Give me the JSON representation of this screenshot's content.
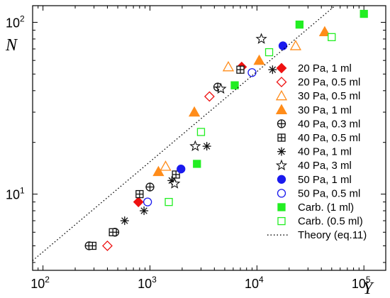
{
  "chart_data": {
    "type": "scatter",
    "xlabel": "Y",
    "ylabel": "N",
    "x_scale": "log",
    "y_scale": "log",
    "xlim": [
      80,
      160000
    ],
    "ylim": [
      3.6,
      125
    ],
    "x_ticks": [
      {
        "value": 100,
        "base": "10",
        "exp": "2"
      },
      {
        "value": 1000,
        "base": "10",
        "exp": "3"
      },
      {
        "value": 10000,
        "base": "10",
        "exp": "4"
      },
      {
        "value": 100000,
        "base": "10",
        "exp": "5"
      }
    ],
    "y_ticks": [
      {
        "value": 10,
        "base": "10",
        "exp": "1"
      },
      {
        "value": 100,
        "base": "10",
        "exp": "2"
      }
    ],
    "legend_position": "right",
    "series": [
      {
        "name": "20 Pa, 1 ml",
        "marker": "diamond-filled",
        "color": "#ee1111",
        "points": [
          [
            780,
            9
          ],
          [
            7200,
            55
          ]
        ]
      },
      {
        "name": "20 Pa, 0.5 ml",
        "marker": "diamond-open",
        "color": "#ee1111",
        "points": [
          [
            400,
            5
          ],
          [
            3600,
            37
          ]
        ]
      },
      {
        "name": "30 Pa, 0.5 ml",
        "marker": "triangle-open",
        "color": "#ff8c1a",
        "points": [
          [
            1400,
            14.5
          ],
          [
            5400,
            55
          ],
          [
            23000,
            73
          ]
        ]
      },
      {
        "name": "30 Pa, 1 ml",
        "marker": "triangle-filled",
        "color": "#ff8c1a",
        "points": [
          [
            1200,
            13.5
          ],
          [
            2600,
            30
          ],
          [
            10500,
            60
          ],
          [
            43000,
            88
          ]
        ]
      },
      {
        "name": "40 Pa, 0.3 ml",
        "marker": "circle-plus",
        "color": "#111111",
        "points": [
          [
            270,
            5
          ],
          [
            470,
            6
          ],
          [
            1000,
            11
          ],
          [
            4300,
            42
          ]
        ]
      },
      {
        "name": "40 Pa, 0.5 ml",
        "marker": "square-plus",
        "color": "#111111",
        "points": [
          [
            290,
            5
          ],
          [
            450,
            6
          ],
          [
            800,
            10
          ],
          [
            1750,
            13
          ],
          [
            7000,
            53
          ]
        ]
      },
      {
        "name": "40 Pa, 1 ml",
        "marker": "asterisk",
        "color": "#111111",
        "points": [
          [
            580,
            7
          ],
          [
            880,
            8
          ],
          [
            1600,
            12
          ],
          [
            3400,
            19
          ],
          [
            14000,
            53
          ]
        ]
      },
      {
        "name": "40 Pa, 3 ml",
        "marker": "star",
        "color": "#111111",
        "points": [
          [
            1700,
            11.5
          ],
          [
            2650,
            19
          ],
          [
            4600,
            41
          ],
          [
            11000,
            80
          ]
        ]
      },
      {
        "name": "50 Pa, 1 ml",
        "marker": "circle-filled",
        "color": "#1a1aee",
        "points": [
          [
            1950,
            14
          ],
          [
            17500,
            73
          ]
        ]
      },
      {
        "name": "50 Pa, 0.5 ml",
        "marker": "circle-open",
        "color": "#1a1aee",
        "points": [
          [
            950,
            9
          ],
          [
            9000,
            51
          ]
        ]
      },
      {
        "name": "Carb. (1 ml)",
        "marker": "square-filled",
        "color": "#22ee22",
        "points": [
          [
            2750,
            15
          ],
          [
            6200,
            43
          ],
          [
            25000,
            97
          ],
          [
            100000,
            112
          ]
        ]
      },
      {
        "name": "Carb. (0.5 ml)",
        "marker": "square-open",
        "color": "#22ee22",
        "points": [
          [
            1500,
            9
          ],
          [
            3000,
            23
          ],
          [
            13000,
            67
          ],
          [
            50000,
            82
          ]
        ]
      },
      {
        "name": "Theory (eq.11)",
        "marker": "dotted-line",
        "color": "#000000",
        "points": [
          [
            80,
            4.1
          ],
          [
            58000,
            130
          ]
        ]
      }
    ]
  }
}
